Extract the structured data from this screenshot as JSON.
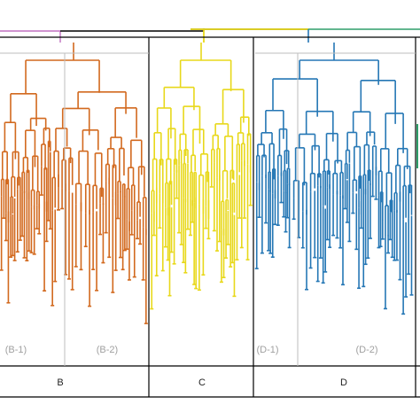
{
  "figure": {
    "type": "dendrogram",
    "groups": [
      {
        "name": "B",
        "color": "#d2691e",
        "subgroups": [
          "(B-1)",
          "(B-2)"
        ]
      },
      {
        "name": "C",
        "color": "#e8d81a",
        "subgroups": []
      },
      {
        "name": "D",
        "color": "#2577b5",
        "subgroups": [
          "(D-1)",
          "(D-2)"
        ]
      }
    ],
    "top_link_colors": {
      "left": "#c070c0",
      "right": "#2e9e6a",
      "root": "#000000"
    }
  }
}
